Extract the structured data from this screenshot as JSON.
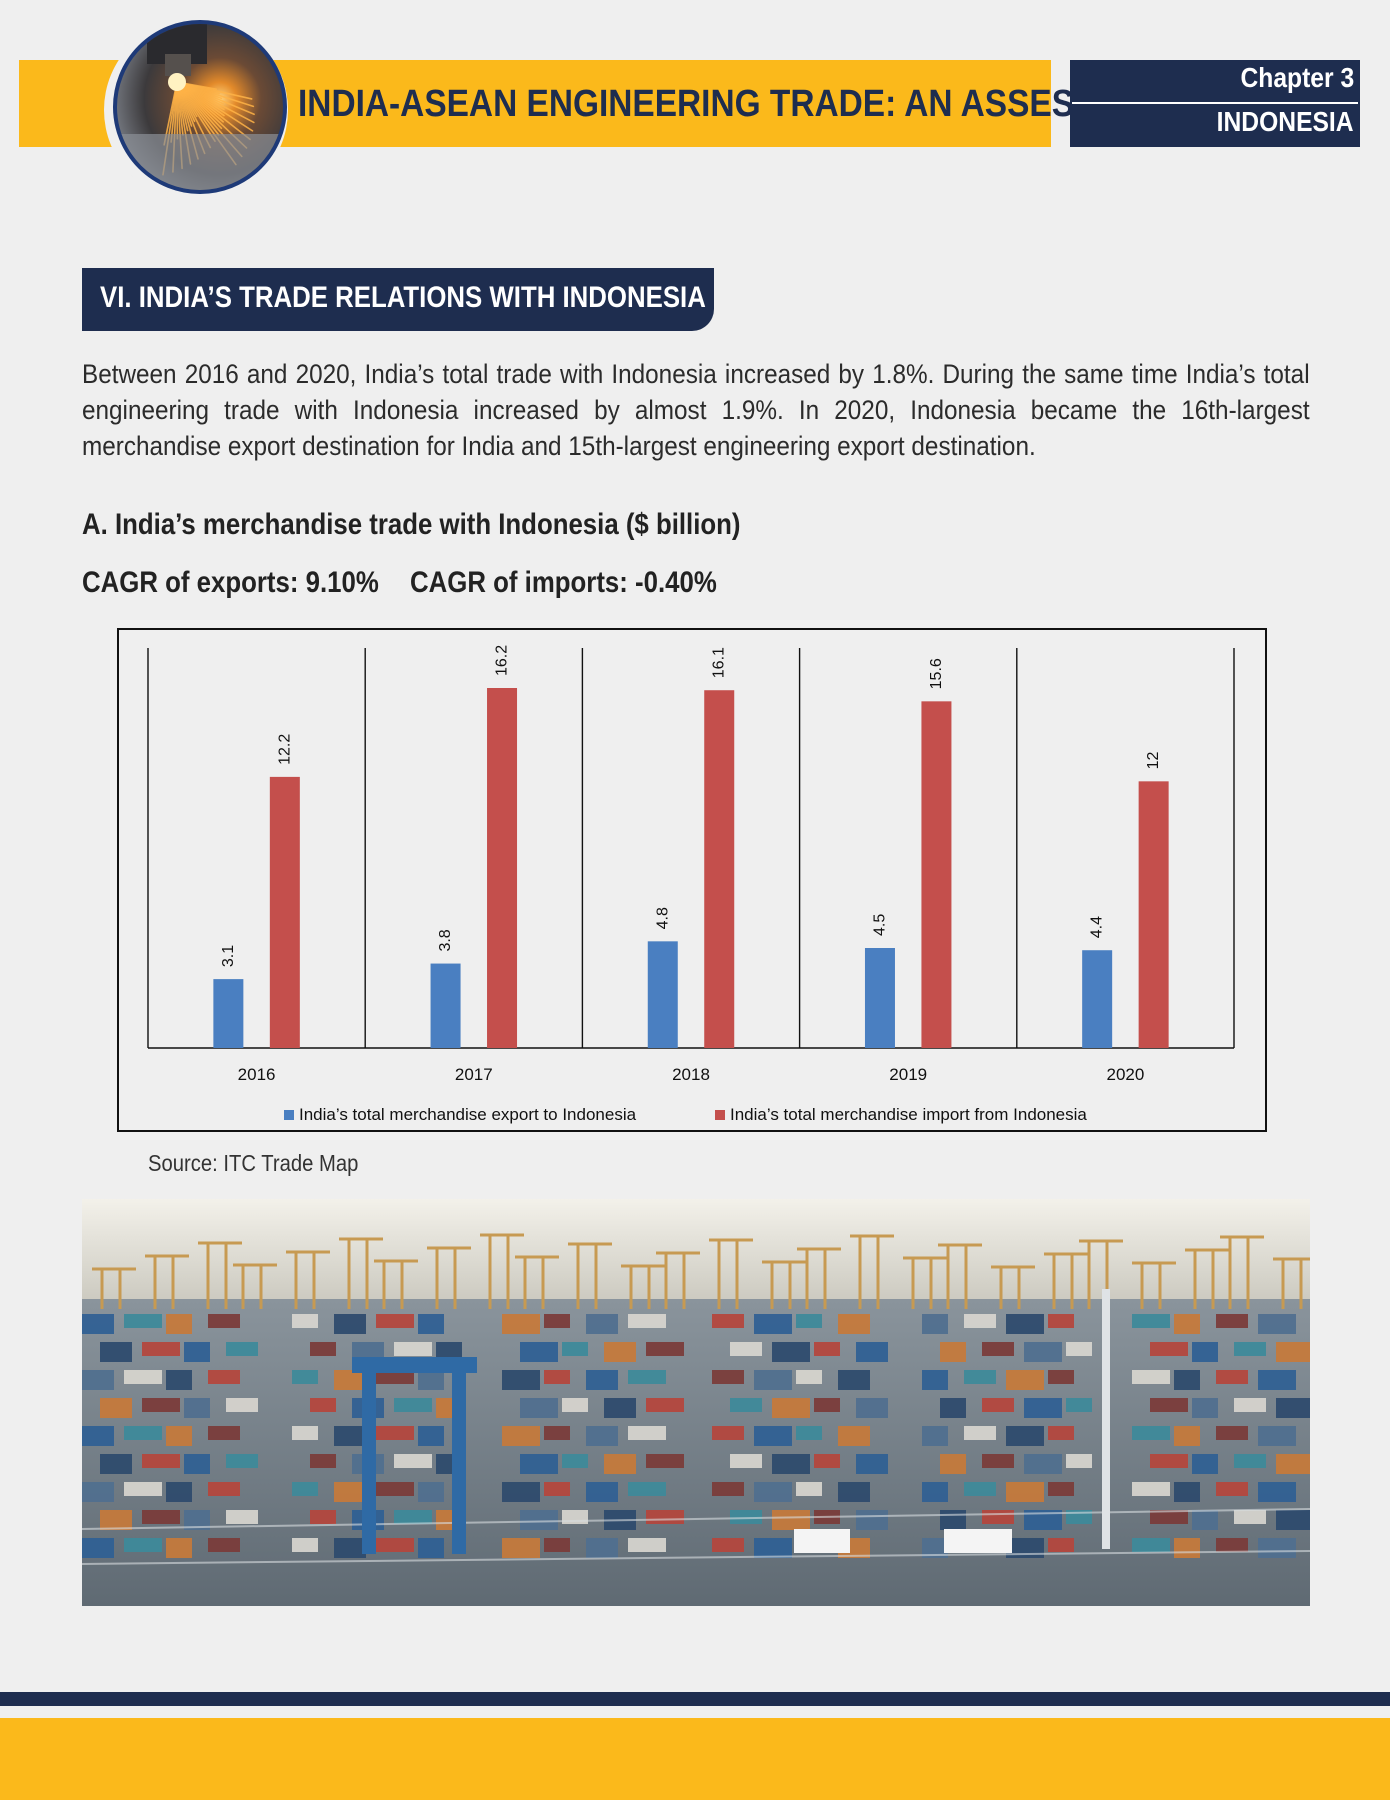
{
  "header": {
    "title": "INDIA-ASEAN ENGINEERING TRADE: AN ASSESSMENT",
    "chapter": "Chapter 3",
    "country": "INDONESIA",
    "badge_icon": "welding-sparks-photo"
  },
  "section": {
    "heading": "VI.  INDIA’S TRADE RELATIONS WITH INDONESIA",
    "intro": "Between 2016 and 2020, India’s total trade with Indonesia increased by 1.8%. During the same time India’s total engineering trade with Indonesia increased by almost 1.9%. In 2020, Indonesia became the 16th-largest merchandise export destination for India and 15th-largest engineering export destination."
  },
  "chart_heading": {
    "title": "A. India’s merchandise trade with Indonesia ($ billion)",
    "cagr_exports": "CAGR of exports: 9.10%",
    "cagr_imports": "CAGR of imports: -0.40%"
  },
  "chart_data": {
    "type": "bar",
    "title": "",
    "categories": [
      "2016",
      "2017",
      "2018",
      "2019",
      "2020"
    ],
    "series": [
      {
        "name": "India’s total merchandise export to Indonesia",
        "values": [
          3.1,
          3.8,
          4.8,
          4.5,
          4.4
        ],
        "color": "#4a7fc1"
      },
      {
        "name": "India’s total merchandise import from Indonesia",
        "values": [
          12.2,
          16.2,
          16.1,
          15.6,
          12
        ],
        "color": "#c44f4c"
      }
    ],
    "value_labels": [
      [
        "3.1",
        "3.8",
        "4.8",
        "4.5",
        "4.4"
      ],
      [
        "12.2",
        "16.2",
        "16.1",
        "15.6",
        "12"
      ]
    ],
    "xlabel": "",
    "ylabel": "",
    "ylim": [
      0,
      18
    ],
    "legend": "bottom",
    "grid": false
  },
  "source": "Source: ITC Trade Map",
  "photo": {
    "icon": "container-port-photo"
  }
}
